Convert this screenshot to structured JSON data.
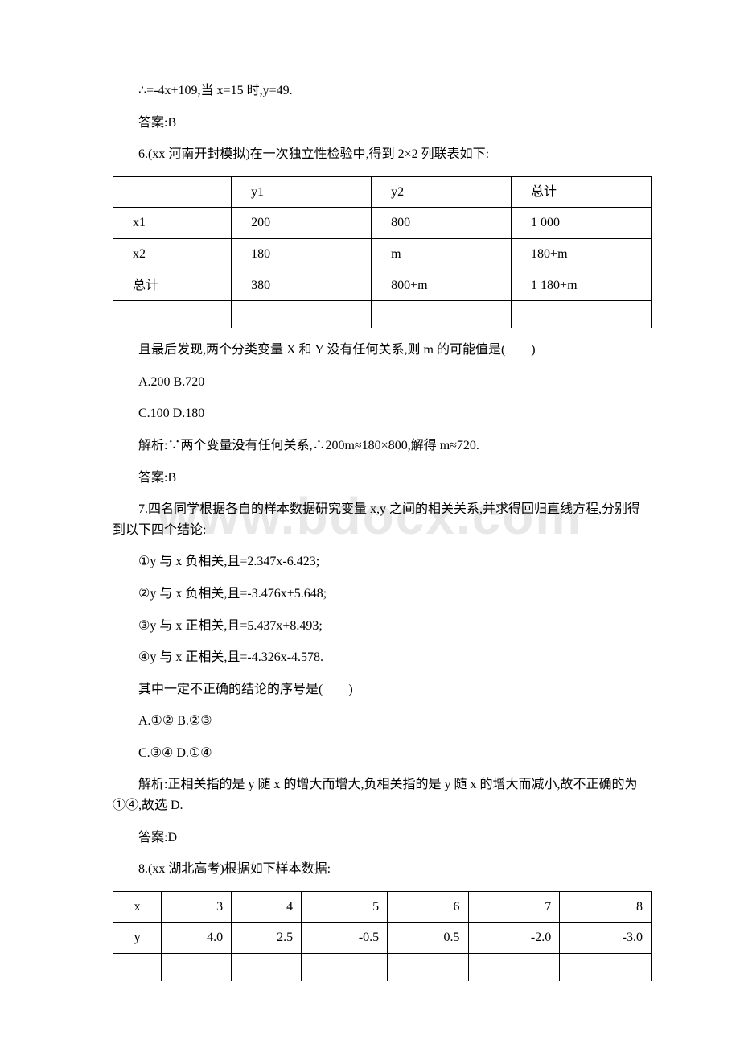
{
  "watermark": "www.bdocx.com",
  "line1": "∴=-4x+109,当 x=15 时,y=49.",
  "ans5": "答案:B",
  "q6_intro": "6.(xx 河南开封模拟)在一次独立性检验中,得到 2×2 列联表如下:",
  "table1": {
    "border_color": "#000000",
    "cell_padding": 6,
    "columns": [
      "",
      "y1",
      "y2",
      "总计"
    ],
    "rows": [
      [
        "x1",
        "200",
        "800",
        "1 000"
      ],
      [
        "x2",
        "180",
        "m",
        "180+m"
      ],
      [
        "总计",
        "380",
        "800+m",
        "1 180+m"
      ],
      [
        "",
        "",
        "",
        ""
      ]
    ]
  },
  "q6_stem": "且最后发现,两个分类变量 X 和 Y 没有任何关系,则 m 的可能值是(　　)",
  "q6_optAB": "A.200 B.720",
  "q6_optCD": "C.100 D.180",
  "q6_sol": "解析:∵两个变量没有任何关系,∴200m≈180×800,解得 m≈720.",
  "ans6": "答案:B",
  "q7_intro": "7.四名同学根据各自的样本数据研究变量 x,y 之间的相关关系,并求得回归直线方程,分别得到以下四个结论:",
  "q7_1": "①y 与 x 负相关,且=2.347x-6.423;",
  "q7_2": "②y 与 x 负相关,且=-3.476x+5.648;",
  "q7_3": "③y 与 x 正相关,且=5.437x+8.493;",
  "q7_4": "④y 与 x 正相关,且=-4.326x-4.578.",
  "q7_stem": "其中一定不正确的结论的序号是(　　)",
  "q7_optAB": "A.①② B.②③",
  "q7_optCD": "C.③④ D.①④",
  "q7_sol": "解析:正相关指的是 y 随 x 的增大而增大,负相关指的是 y 随 x 的增大而减小,故不正确的为①④,故选 D.",
  "ans7": "答案:D",
  "q8_intro": "8.(xx 湖北高考)根据如下样本数据:",
  "table2": {
    "border_color": "#000000",
    "columns": [
      "x",
      "3",
      "4",
      "5",
      "6",
      "7",
      "8"
    ],
    "rows": [
      [
        "y",
        "4.0",
        "2.5",
        "-0.5",
        "0.5",
        "-2.0",
        "-3.0"
      ],
      [
        "",
        "",
        "",
        "",
        "",
        "",
        ""
      ]
    ]
  }
}
